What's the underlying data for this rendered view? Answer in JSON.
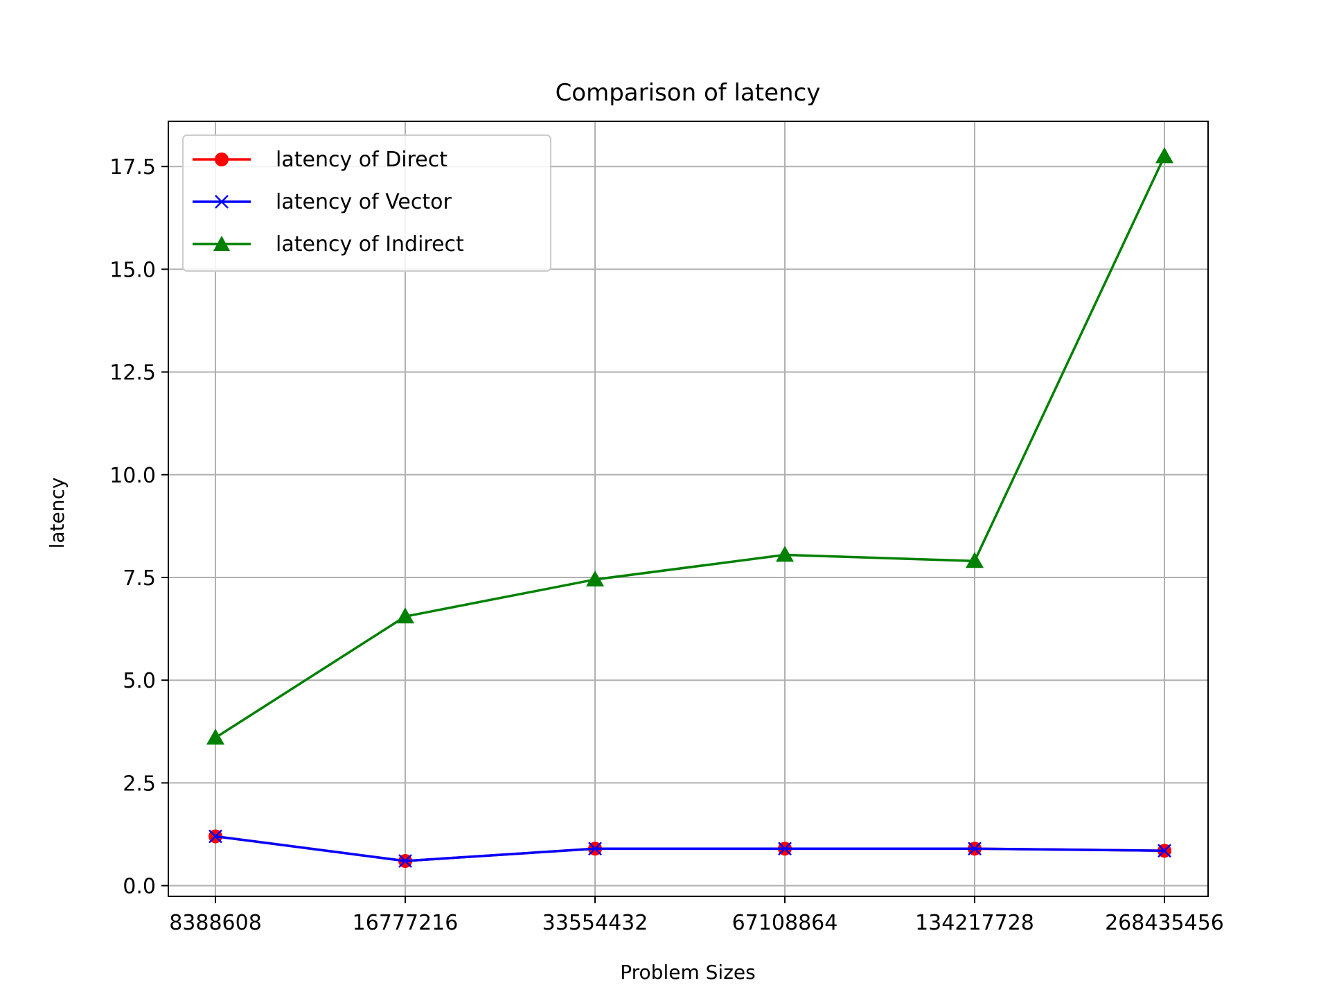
{
  "chart_data": {
    "type": "line",
    "title": "Comparison of latency",
    "xlabel": "Problem Sizes",
    "ylabel": "latency",
    "categories": [
      "8388608",
      "16777216",
      "33554432",
      "67108864",
      "134217728",
      "268435456"
    ],
    "yticks": [
      "0.0",
      "2.5",
      "5.0",
      "7.5",
      "10.0",
      "12.5",
      "15.0",
      "17.5"
    ],
    "ylim": [
      -0.26,
      18.6
    ],
    "grid": true,
    "legend_position": "top-left",
    "series": [
      {
        "name": "latency of Direct",
        "color": "#ff0000",
        "marker": "circle",
        "values": [
          1.2,
          0.6,
          0.9,
          0.9,
          0.9,
          0.85
        ]
      },
      {
        "name": "latency of Vector",
        "color": "#0000ff",
        "marker": "x",
        "values": [
          1.2,
          0.6,
          0.9,
          0.9,
          0.9,
          0.85
        ]
      },
      {
        "name": "latency of Indirect",
        "color": "#008000",
        "marker": "triangle",
        "values": [
          3.6,
          6.55,
          7.45,
          8.05,
          7.9,
          17.75
        ]
      }
    ]
  }
}
